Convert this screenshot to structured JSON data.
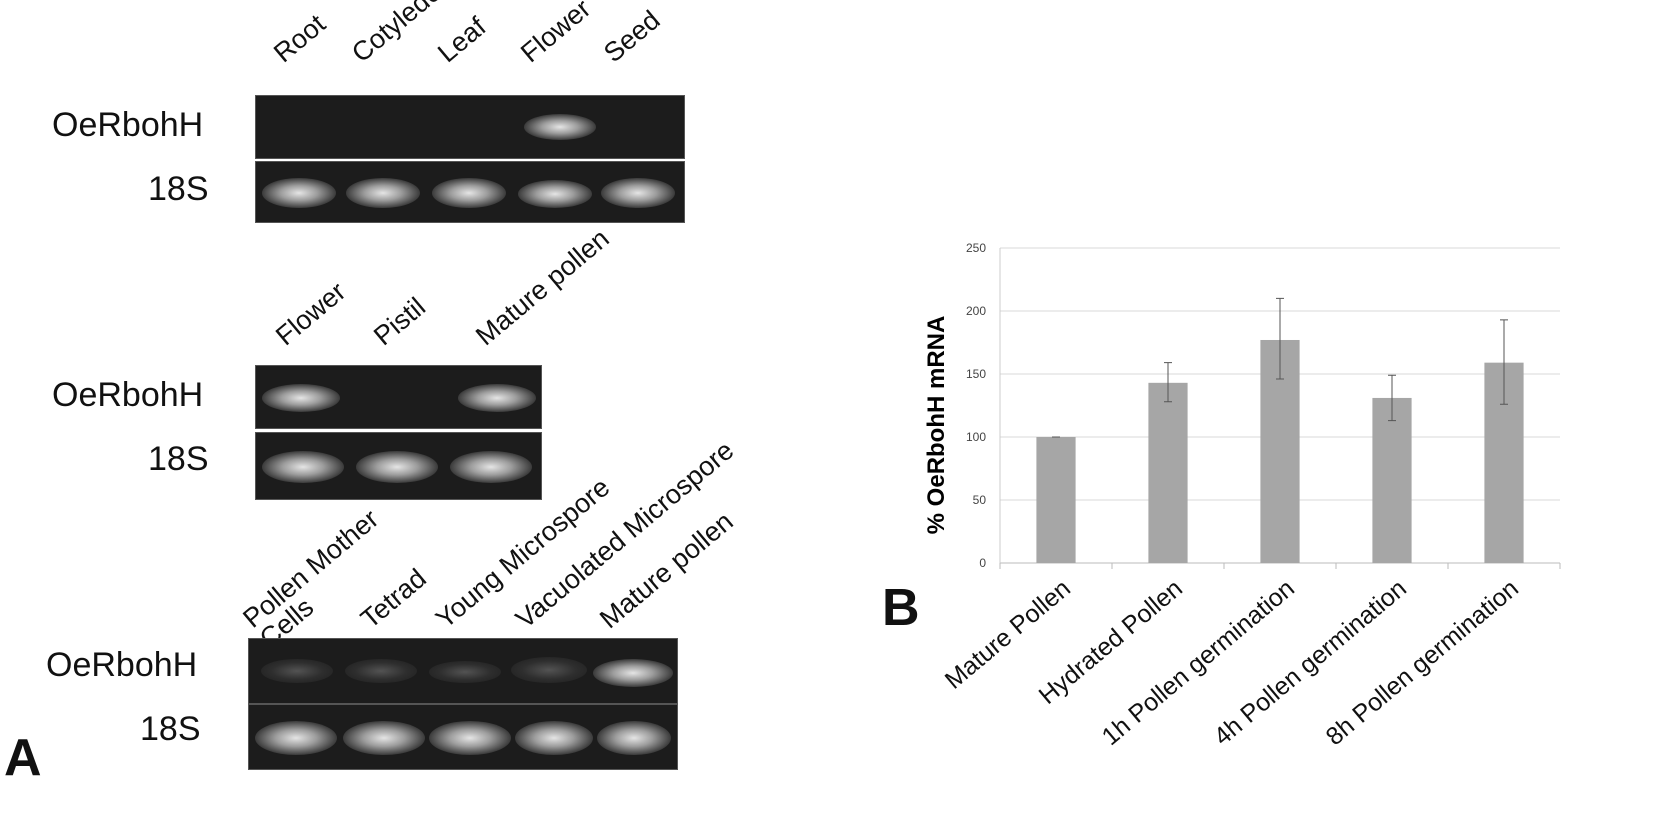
{
  "panel_a": {
    "letter": "A",
    "gel1": {
      "lanes": [
        "Root",
        "Cotyledon",
        "Leaf",
        "Flower",
        "Seed"
      ],
      "gene_label": "OeRbohH",
      "control_label": "18S",
      "gene_bands": [
        0,
        0,
        0,
        1,
        0
      ],
      "control_bands": [
        1,
        1,
        1,
        1,
        1
      ]
    },
    "gel2": {
      "lanes": [
        "Flower",
        "Pistil",
        "Mature pollen"
      ],
      "gene_label": "OeRbohH",
      "control_label": "18S",
      "gene_bands": [
        1,
        0,
        1
      ],
      "control_bands": [
        1,
        1,
        1
      ]
    },
    "gel3": {
      "lanes": [
        "Pollen Mother\nCells",
        "Tetrad",
        "Young Microspore",
        "Vacuolated Microspore",
        "Mature pollen"
      ],
      "gene_label": "OeRbohH",
      "control_label": "18S",
      "gene_bands": [
        0.3,
        0.3,
        0.3,
        0.5,
        1
      ],
      "control_bands": [
        1,
        1,
        1,
        1,
        1
      ]
    }
  },
  "panel_b": {
    "letter": "B"
  },
  "chart_data": {
    "type": "bar",
    "categories": [
      "Mature Pollen",
      "Hydrated Pollen",
      "1h Pollen germination",
      "4h Pollen germination",
      "8h Pollen germination"
    ],
    "values": [
      100,
      143,
      177,
      131,
      159
    ],
    "error_low": [
      100,
      128,
      146,
      113,
      126
    ],
    "error_high": [
      100,
      159,
      210,
      149,
      193
    ],
    "ylabel": "% OeRbohH mRNA",
    "xlabel": "",
    "ylim": [
      0,
      250
    ],
    "yticks": [
      0,
      50,
      100,
      150,
      200,
      250
    ],
    "grid": true,
    "bar_color": "#a6a6a6"
  }
}
